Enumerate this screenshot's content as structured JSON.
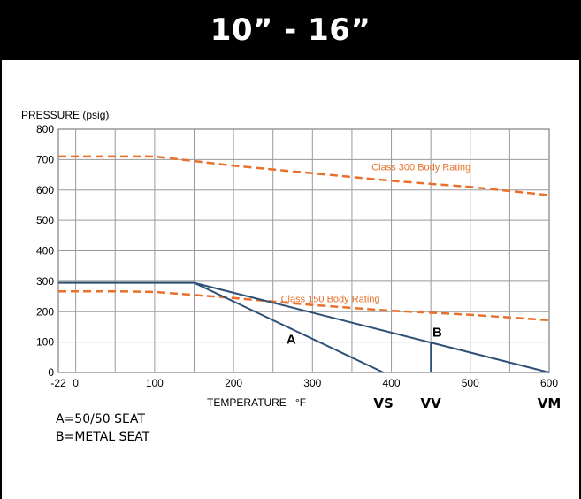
{
  "header": {
    "title": "10” - 16”"
  },
  "chart_data": {
    "type": "line",
    "ylabel": "PRESSURE (psig)",
    "xlabel": "TEMPERATURE",
    "xlabel_unit": "°F",
    "xlim": [
      -22,
      600
    ],
    "ylim": [
      0,
      800
    ],
    "x_ticks": [
      -22,
      0,
      100,
      200,
      300,
      400,
      500,
      600
    ],
    "y_ticks": [
      0,
      100,
      200,
      300,
      400,
      500,
      600,
      700,
      800
    ],
    "grid": true,
    "series": [
      {
        "name": "Class 300 Body Rating",
        "style": "dashed",
        "color": "#e8702a",
        "points": [
          [
            -22,
            710
          ],
          [
            100,
            710
          ],
          [
            150,
            695
          ],
          [
            200,
            680
          ],
          [
            300,
            655
          ],
          [
            400,
            630
          ],
          [
            500,
            610
          ],
          [
            600,
            583
          ]
        ]
      },
      {
        "name": "Class 150 Body Rating",
        "style": "dashed",
        "color": "#e8702a",
        "points": [
          [
            -22,
            267
          ],
          [
            50,
            267
          ],
          [
            100,
            265
          ],
          [
            200,
            245
          ],
          [
            300,
            222
          ],
          [
            400,
            203
          ],
          [
            500,
            190
          ],
          [
            600,
            172
          ]
        ]
      },
      {
        "name": "A",
        "style": "solid",
        "color": "#2e4f78",
        "points": [
          [
            -22,
            295
          ],
          [
            150,
            295
          ],
          [
            390,
            0
          ]
        ]
      },
      {
        "name": "B",
        "style": "solid",
        "color": "#2e4f78",
        "points": [
          [
            150,
            295
          ],
          [
            600,
            0
          ]
        ]
      },
      {
        "name": "VV",
        "style": "solid",
        "color": "#2e4f78",
        "points": [
          [
            450,
            100
          ],
          [
            450,
            0
          ]
        ]
      }
    ],
    "annotations": [
      {
        "text": "Class 300 Body Rating",
        "x": 375,
        "y": 665,
        "color": "#e8702a"
      },
      {
        "text": "Class 150 Body Rating",
        "x": 260,
        "y": 232,
        "color": "#e8702a"
      },
      {
        "text": "A",
        "x": 267,
        "y": 95,
        "color": "#000000"
      },
      {
        "text": "B",
        "x": 452,
        "y": 118,
        "color": "#000000"
      }
    ],
    "seat_markers": [
      {
        "text": "VS",
        "x": 390
      },
      {
        "text": "VV",
        "x": 450
      },
      {
        "text": "VM",
        "x": 600
      }
    ]
  },
  "legend_notes": [
    "A=50/50 SEAT",
    "B=METAL SEAT"
  ]
}
